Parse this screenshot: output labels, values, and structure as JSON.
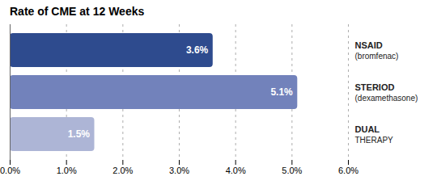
{
  "chart_data": {
    "type": "bar",
    "orientation": "horizontal",
    "title": "Rate of CME at 12 Weeks",
    "categories": [
      "NSAID",
      "STERIOD",
      "DUAL"
    ],
    "category_notes": [
      "(bromfenac)",
      "(dexamethasone)",
      "THERAPY"
    ],
    "values": [
      3.6,
      5.1,
      1.5
    ],
    "value_labels": [
      "3.6%",
      "5.1%",
      "1.5%"
    ],
    "data_labels": true,
    "colors": [
      "#2e4b8e",
      "#7282bb",
      "#adb5d6"
    ],
    "xlim": [
      0,
      6.0
    ],
    "xticks": [
      {
        "value": 0.0,
        "label": "0.0%"
      },
      {
        "value": 1.0,
        "label": "1.0%"
      },
      {
        "value": 2.0,
        "label": "2.0%"
      },
      {
        "value": 3.0,
        "label": "3.0%"
      },
      {
        "value": 4.0,
        "label": "4.0%"
      },
      {
        "value": 5.0,
        "label": "5.0%"
      },
      {
        "value": 6.0,
        "label": "6.0%"
      }
    ],
    "grid": true
  }
}
